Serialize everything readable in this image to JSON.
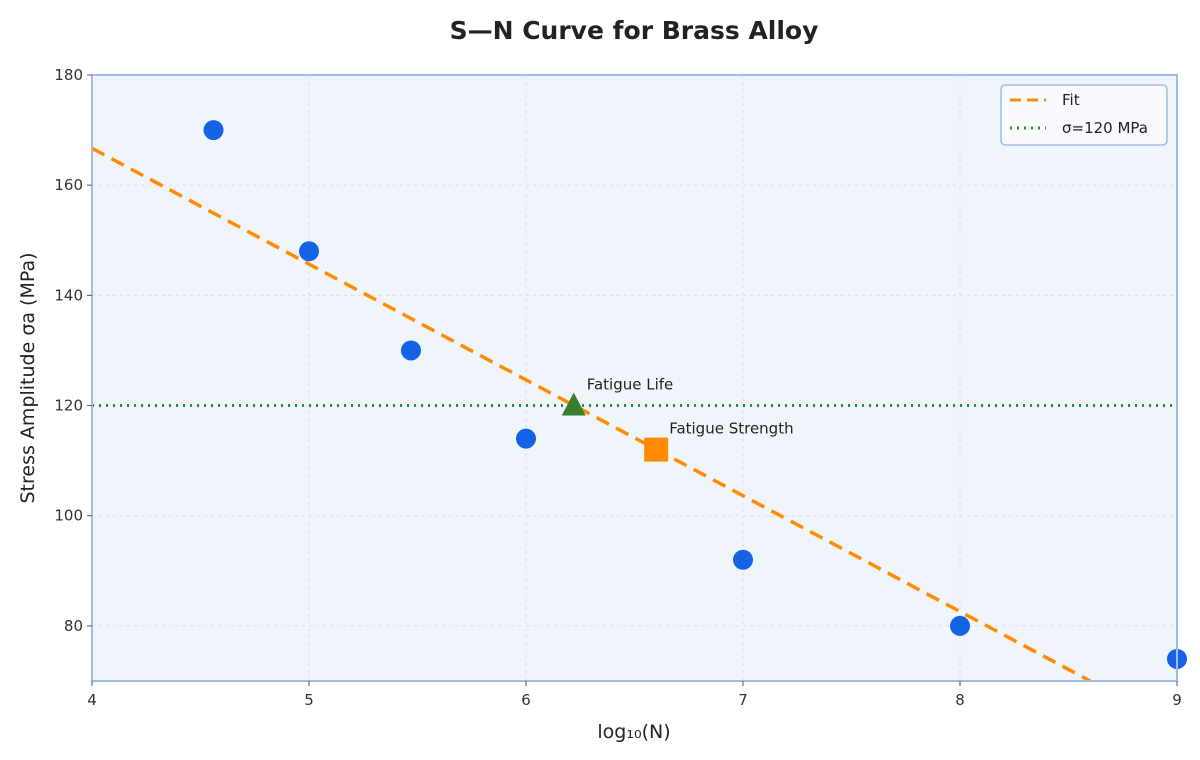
{
  "chart_data": {
    "type": "scatter",
    "title": "S—N Curve for Brass Alloy",
    "xlabel": "log₁₀(N)",
    "ylabel": "Stress Amplitude σa (MPa)",
    "xlim": [
      4,
      9
    ],
    "ylim": [
      70,
      180
    ],
    "xticks": [
      4,
      5,
      6,
      7,
      8,
      9
    ],
    "yticks": [
      80,
      100,
      120,
      140,
      160,
      180
    ],
    "grid": true,
    "legend_position": "top-right",
    "colors": {
      "points": "#1463e6",
      "fit": "#ff8c00",
      "reference": "#2e8b2e",
      "fatigue_life": "#3a7d2c",
      "fatigue_strength": "#ff8c00",
      "plot_bg": "#f0f5fb",
      "frame": "#9fbde8"
    },
    "points": [
      {
        "x": 4.56,
        "y": 170
      },
      {
        "x": 5.0,
        "y": 148
      },
      {
        "x": 5.47,
        "y": 130
      },
      {
        "x": 6.0,
        "y": 114
      },
      {
        "x": 7.0,
        "y": 92
      },
      {
        "x": 8.0,
        "y": 80
      },
      {
        "x": 9.0,
        "y": 74
      }
    ],
    "fit_line": {
      "name": "Fit",
      "x": [
        4.0,
        8.6
      ],
      "y": [
        166.7,
        70
      ]
    },
    "reference_line": {
      "name": "σ=120 MPa",
      "y": 120
    },
    "annotations": [
      {
        "label": "Fatigue Life",
        "x": 6.22,
        "y": 120,
        "marker": "triangle"
      },
      {
        "label": "Fatigue Strength",
        "x": 6.6,
        "y": 112,
        "marker": "square"
      }
    ]
  }
}
